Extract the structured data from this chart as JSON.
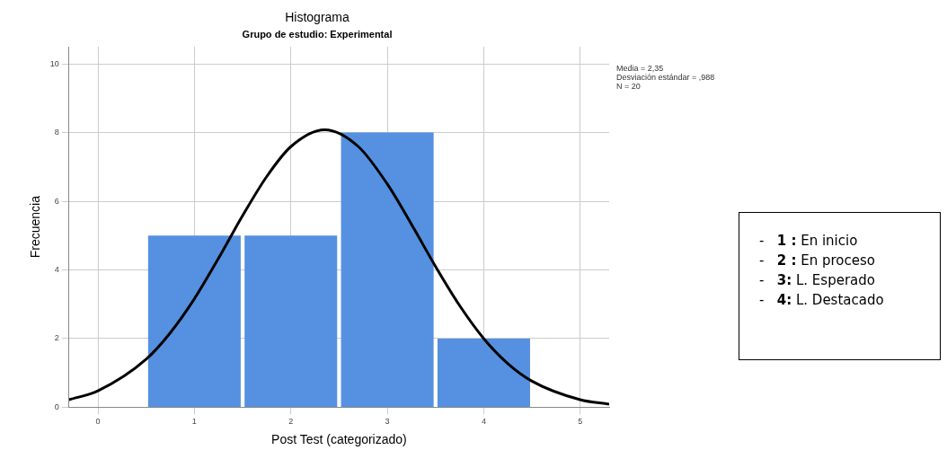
{
  "chart_data": {
    "type": "histogram",
    "title": "Histograma",
    "subtitle": "Grupo de estudio: Experimental",
    "xlabel": "Post Test (categorizado)",
    "ylabel": "Frecuencia",
    "bins": [
      0.5,
      1.5,
      2.5,
      3.5,
      4.5
    ],
    "values": [
      5,
      5,
      8,
      2
    ],
    "color": "#5591e0",
    "series": [
      {
        "type": "line",
        "color": "#000000",
        "x": [
          -0.3,
          0,
          0.5,
          0.75,
          1,
          1.25,
          1.5,
          1.75,
          2,
          2.35,
          2.7,
          3,
          3.25,
          3.5,
          3.75,
          4,
          4.25,
          4.5,
          5,
          5.3
        ],
        "values": [
          0.22,
          0.48,
          1.4,
          2.17,
          3.16,
          4.34,
          5.58,
          6.72,
          7.59,
          8.08,
          7.59,
          6.5,
          5.33,
          4.1,
          2.96,
          2.0,
          1.27,
          0.76,
          0.22,
          0.09
        ]
      }
    ],
    "xlim": [
      -0.3,
      5.3
    ],
    "xticks": [
      0,
      1,
      2,
      3,
      4,
      5
    ],
    "ylim": [
      0,
      10.5
    ],
    "yticks": [
      0,
      2,
      4,
      6,
      8,
      10
    ],
    "grid": true,
    "marker": "none",
    "annotations": [
      "Media = 2,35",
      "Desviación estándar = ,988",
      "N = 20",
      "- 1 : En inicio",
      "- 2 : En proceso",
      "- 3: L. Esperado",
      "- 4: L. Destacado"
    ]
  }
}
